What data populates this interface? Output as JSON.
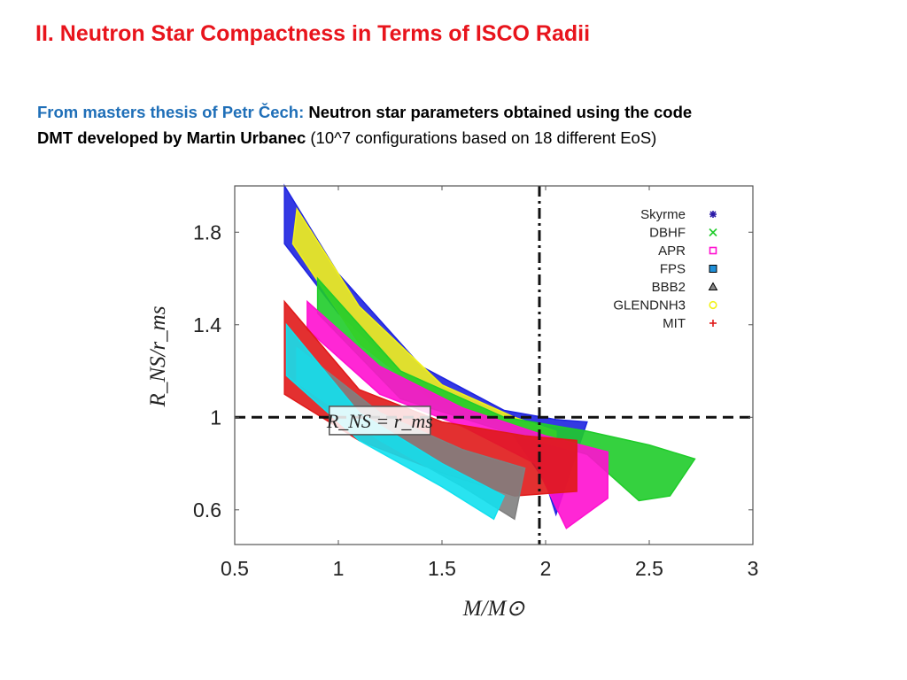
{
  "slide": {
    "title": "II. Neutron Star Compactness in Terms of ISCO Radii",
    "source": "From masters thesis of Petr Čech:",
    "description_bold_1": "Neutron star parameters obtained using the code",
    "description_bold_2": "DMT developed by Martin Urbanec",
    "description_plain": "(10^7 configurations based on 18 different EoS)"
  },
  "chart_data": {
    "type": "scatter",
    "xlabel": "M/M⊙",
    "ylabel": "R_NS/r_ms",
    "xlim": [
      0.5,
      3.0
    ],
    "ylim": [
      0.45,
      2.0
    ],
    "x_ticks": [
      0.5,
      1,
      1.5,
      2,
      2.5,
      3
    ],
    "x_tick_labels": [
      "0.5",
      "1",
      "1.5",
      "2",
      "2.5",
      "3"
    ],
    "y_ticks": [
      0.6,
      1,
      1.4,
      1.8
    ],
    "y_tick_labels": [
      "0.6",
      "1",
      "1.4",
      "1.8"
    ],
    "grid": false,
    "legend_position": "top-right",
    "series": [
      {
        "name": "Skyrme",
        "color": "#2a1aa8",
        "marker": "asterisk"
      },
      {
        "name": "DBHF",
        "color": "#1fcc2a",
        "marker": "cross"
      },
      {
        "name": "APR",
        "color": "#ff10d0",
        "marker": "square-open"
      },
      {
        "name": "FPS",
        "color": "#1f8fd8",
        "marker": "square"
      },
      {
        "name": "BBB2",
        "color": "#444444",
        "marker": "triangle"
      },
      {
        "name": "GLENDNH3",
        "color": "#f2f21a",
        "marker": "circle-open"
      },
      {
        "name": "MIT",
        "color": "#e01a1a",
        "marker": "plus"
      }
    ],
    "regions": [
      {
        "series": "Skyrme",
        "color": "#1e24e0",
        "upper": [
          [
            0.74,
            2.0
          ],
          [
            1.0,
            1.62
          ],
          [
            1.4,
            1.22
          ],
          [
            1.8,
            1.03
          ],
          [
            2.05,
            0.99
          ],
          [
            2.2,
            0.98
          ]
        ],
        "lower": [
          [
            0.74,
            1.75
          ],
          [
            1.0,
            1.45
          ],
          [
            1.4,
            1.12
          ],
          [
            1.8,
            0.98
          ],
          [
            2.0,
            0.72
          ],
          [
            2.05,
            0.58
          ]
        ]
      },
      {
        "series": "GLENDNH3",
        "color": "#f2f21a",
        "upper": [
          [
            0.8,
            1.9
          ],
          [
            1.1,
            1.48
          ],
          [
            1.5,
            1.14
          ],
          [
            1.85,
            1.0
          ],
          [
            2.05,
            0.94
          ]
        ],
        "lower": [
          [
            0.78,
            1.75
          ],
          [
            1.1,
            1.32
          ],
          [
            1.5,
            1.04
          ],
          [
            1.85,
            0.94
          ],
          [
            2.05,
            0.9
          ]
        ]
      },
      {
        "series": "DBHF",
        "color": "#1fcc2a",
        "upper": [
          [
            0.9,
            1.6
          ],
          [
            1.3,
            1.2
          ],
          [
            1.8,
            1.0
          ],
          [
            2.2,
            0.94
          ],
          [
            2.5,
            0.88
          ],
          [
            2.72,
            0.82
          ]
        ],
        "lower": [
          [
            0.9,
            1.45
          ],
          [
            1.3,
            1.08
          ],
          [
            1.8,
            0.94
          ],
          [
            2.2,
            0.84
          ],
          [
            2.45,
            0.64
          ],
          [
            2.6,
            0.66
          ]
        ]
      },
      {
        "series": "APR",
        "color": "#ff10d0",
        "upper": [
          [
            0.85,
            1.5
          ],
          [
            1.2,
            1.22
          ],
          [
            1.6,
            1.04
          ],
          [
            2.0,
            0.92
          ],
          [
            2.3,
            0.85
          ]
        ],
        "lower": [
          [
            0.85,
            1.38
          ],
          [
            1.2,
            1.1
          ],
          [
            1.6,
            0.96
          ],
          [
            1.95,
            0.8
          ],
          [
            2.1,
            0.52
          ],
          [
            2.3,
            0.65
          ]
        ]
      },
      {
        "series": "MIT",
        "color": "#e01a1a",
        "upper": [
          [
            0.74,
            1.5
          ],
          [
            1.1,
            1.12
          ],
          [
            1.5,
            0.98
          ],
          [
            1.9,
            0.92
          ],
          [
            2.15,
            0.9
          ]
        ],
        "lower": [
          [
            0.74,
            1.1
          ],
          [
            1.1,
            0.9
          ],
          [
            1.5,
            0.76
          ],
          [
            1.85,
            0.66
          ],
          [
            2.15,
            0.68
          ]
        ]
      },
      {
        "series": "BBB2",
        "color": "#808080",
        "upper": [
          [
            0.8,
            1.3
          ],
          [
            1.2,
            1.02
          ],
          [
            1.6,
            0.86
          ],
          [
            1.9,
            0.78
          ]
        ],
        "lower": [
          [
            0.8,
            1.15
          ],
          [
            1.2,
            0.9
          ],
          [
            1.6,
            0.7
          ],
          [
            1.85,
            0.56
          ]
        ]
      },
      {
        "series": "FPS",
        "color": "#12e0ee",
        "upper": [
          [
            0.75,
            1.4
          ],
          [
            1.1,
            1.02
          ],
          [
            1.5,
            0.8
          ],
          [
            1.8,
            0.66
          ]
        ],
        "lower": [
          [
            0.75,
            1.18
          ],
          [
            1.1,
            0.9
          ],
          [
            1.5,
            0.7
          ],
          [
            1.75,
            0.56
          ],
          [
            1.78,
            0.62
          ]
        ]
      }
    ],
    "reference_lines": [
      {
        "axis": "y",
        "value": 1.0,
        "style": "dashed"
      },
      {
        "axis": "x",
        "value": 1.97,
        "style": "dash-dot"
      }
    ],
    "annotation": {
      "text": "R_NS = r_ms",
      "x": 1.2,
      "y": 0.99
    }
  }
}
